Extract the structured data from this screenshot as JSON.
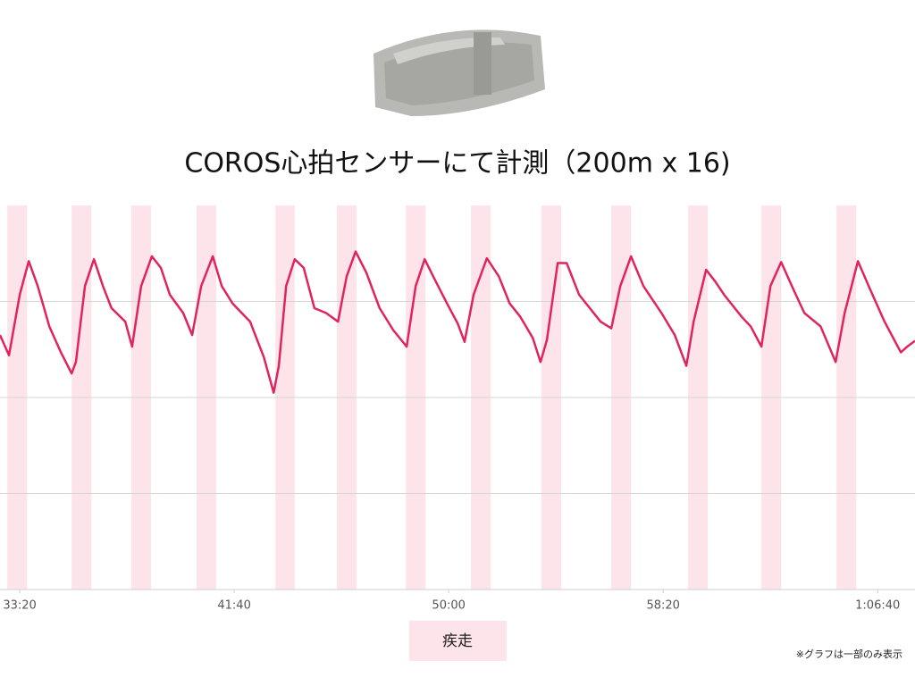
{
  "chart_data": {
    "type": "line",
    "title": "COROS心拍センサーにて計測（200m x 16)",
    "note": "※グラフは一部のみ表示",
    "color": "#e0245e",
    "x": [
      1954,
      1975,
      2000,
      2021,
      2042,
      2069,
      2096,
      2121,
      2131,
      2152,
      2173,
      2194,
      2214,
      2246,
      2262,
      2283,
      2308,
      2329,
      2350,
      2381,
      2402,
      2423,
      2450,
      2471,
      2496,
      2537,
      2569,
      2592,
      2604,
      2621,
      2641,
      2662,
      2687,
      2714,
      2742,
      2762,
      2783,
      2808,
      2839,
      2871,
      2902,
      2923,
      2944,
      2964,
      2996,
      3021,
      3037,
      3058,
      3089,
      3117,
      3142,
      3167,
      3196,
      3214,
      3229,
      3254,
      3275,
      3304,
      3329,
      3354,
      3379,
      3400,
      3425,
      3454,
      3496,
      3527,
      3554,
      3571,
      3600,
      3621,
      3642,
      3683,
      3704,
      3729,
      3750,
      3775,
      3800,
      3829,
      3867,
      3902,
      3923,
      3954,
      3979,
      4016,
      4054,
      4069,
      4087
    ],
    "values": [
      2.65,
      2.44,
      3.07,
      3.42,
      3.16,
      2.74,
      2.47,
      2.25,
      2.37,
      3.16,
      3.44,
      3.16,
      2.93,
      2.79,
      2.53,
      3.16,
      3.47,
      3.35,
      3.07,
      2.88,
      2.65,
      3.16,
      3.47,
      3.16,
      2.98,
      2.79,
      2.42,
      2.05,
      2.33,
      3.16,
      3.44,
      3.35,
      2.93,
      2.88,
      2.79,
      3.26,
      3.52,
      3.3,
      2.93,
      2.7,
      2.53,
      3.16,
      3.44,
      3.26,
      2.98,
      2.77,
      2.58,
      3.07,
      3.45,
      3.26,
      2.98,
      2.84,
      2.62,
      2.37,
      2.6,
      3.4,
      3.4,
      3.07,
      2.93,
      2.79,
      2.72,
      3.16,
      3.47,
      3.16,
      2.88,
      2.65,
      2.33,
      2.79,
      3.33,
      3.21,
      3.07,
      2.84,
      2.74,
      2.53,
      3.16,
      3.41,
      3.16,
      2.88,
      2.74,
      2.37,
      2.88,
      3.42,
      3.16,
      2.79,
      2.47,
      2.53,
      2.59
    ],
    "highlight": {
      "name": "疾走",
      "color": "#fde4ea",
      "ranges": [
        [
          1971,
          2017
        ],
        [
          2121,
          2167
        ],
        [
          2260,
          2306
        ],
        [
          2412,
          2458
        ],
        [
          2596,
          2641
        ],
        [
          2739,
          2785
        ],
        [
          2900,
          2946
        ],
        [
          3052,
          3098
        ],
        [
          3216,
          3262
        ],
        [
          3379,
          3425
        ],
        [
          3558,
          3604
        ],
        [
          3729,
          3775
        ],
        [
          3904,
          3950
        ]
      ]
    },
    "xlim": [
      1954,
      4087
    ],
    "xticks": [
      {
        "value": 2000,
        "label": "33:20"
      },
      {
        "value": 2500,
        "label": "41:40"
      },
      {
        "value": 3000,
        "label": "50:00"
      },
      {
        "value": 3500,
        "label": "58:20"
      },
      {
        "value": 4000,
        "label": "1:06:40"
      }
    ],
    "ylim": [
      0,
      4
    ],
    "yticks": [
      1,
      2,
      3
    ],
    "grid": true
  }
}
